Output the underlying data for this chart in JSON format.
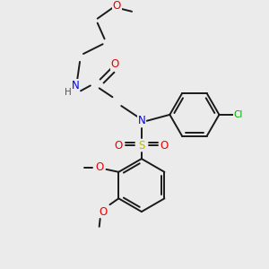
{
  "bg_color": "#ebebeb",
  "bond_color": "#1a1a1a",
  "atom_colors": {
    "N": "#0000ee",
    "O": "#ee0000",
    "S": "#bbbb00",
    "Cl": "#00aa00",
    "H": "#555555",
    "C": "#1a1a1a"
  },
  "figsize": [
    3.0,
    3.0
  ],
  "dpi": 100,
  "bond_lw": 1.4,
  "font_size": 7.5
}
